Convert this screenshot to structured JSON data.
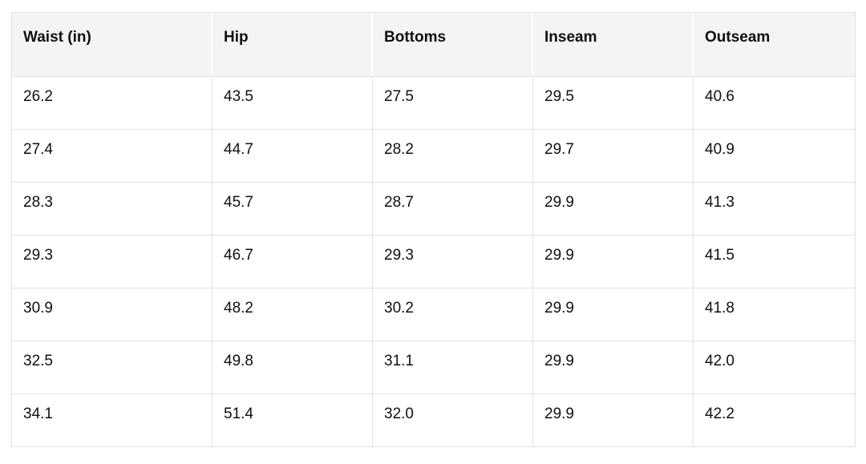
{
  "table": {
    "columns": [
      "Waist (in)",
      "Hip",
      "Bottoms",
      "Inseam",
      "Outseam"
    ],
    "rows": [
      [
        "26.2",
        "43.5",
        "27.5",
        "29.5",
        "40.6"
      ],
      [
        "27.4",
        "44.7",
        "28.2",
        "29.7",
        "40.9"
      ],
      [
        "28.3",
        "45.7",
        "28.7",
        "29.9",
        "41.3"
      ],
      [
        "29.3",
        "46.7",
        "29.3",
        "29.9",
        "41.5"
      ],
      [
        "30.9",
        "48.2",
        "30.2",
        "29.9",
        "41.8"
      ],
      [
        "32.5",
        "49.8",
        "31.1",
        "29.9",
        "42.0"
      ],
      [
        "34.1",
        "51.4",
        "32.0",
        "29.9",
        "42.2"
      ]
    ]
  },
  "colors": {
    "header_bg": "#f4f4f4",
    "border": "#e2e2e2",
    "text": "#101010",
    "page_bg": "#ffffff"
  }
}
